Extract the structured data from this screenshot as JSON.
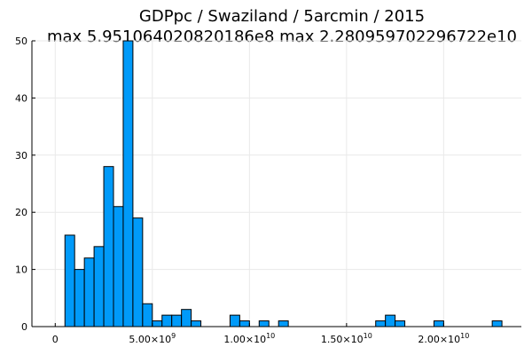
{
  "chart_data": {
    "type": "bar",
    "title": "GDPpc / Swaziland / 5arcmin / 2015",
    "subtitle": "max 5.951064020820186e8  max 2.280959702296722e10",
    "xlabel": "",
    "ylabel": "",
    "xlim": [
      -1200000000.0,
      24000000000.0
    ],
    "ylim": [
      0,
      50
    ],
    "grid": true,
    "legend": "none",
    "bar_color": "#009af9",
    "x_ticks": [
      {
        "value": 0,
        "mantissa": "0",
        "exponent": ""
      },
      {
        "value": 5000000000.0,
        "mantissa": "5.00×10",
        "exponent": "9"
      },
      {
        "value": 10000000000.0,
        "mantissa": "1.00×10",
        "exponent": "10"
      },
      {
        "value": 15000000000.0,
        "mantissa": "1.50×10",
        "exponent": "10"
      },
      {
        "value": 20000000000.0,
        "mantissa": "2.00×10",
        "exponent": "10"
      }
    ],
    "y_ticks": [
      0,
      10,
      20,
      30,
      40,
      50
    ],
    "bin_width": 500000000.0,
    "bins": [
      {
        "start": 500000000.0,
        "count": 16
      },
      {
        "start": 1000000000.0,
        "count": 10
      },
      {
        "start": 1500000000.0,
        "count": 12
      },
      {
        "start": 2000000000.0,
        "count": 14
      },
      {
        "start": 2500000000.0,
        "count": 28
      },
      {
        "start": 3000000000.0,
        "count": 21
      },
      {
        "start": 3500000000.0,
        "count": 50
      },
      {
        "start": 4000000000.0,
        "count": 19
      },
      {
        "start": 4500000000.0,
        "count": 4
      },
      {
        "start": 5000000000.0,
        "count": 1
      },
      {
        "start": 5500000000.0,
        "count": 2
      },
      {
        "start": 6000000000.0,
        "count": 2
      },
      {
        "start": 6500000000.0,
        "count": 3
      },
      {
        "start": 7000000000.0,
        "count": 1
      },
      {
        "start": 9000000000.0,
        "count": 2
      },
      {
        "start": 9500000000.0,
        "count": 1
      },
      {
        "start": 10500000000.0,
        "count": 1
      },
      {
        "start": 11500000000.0,
        "count": 1
      },
      {
        "start": 16500000000.0,
        "count": 1
      },
      {
        "start": 17000000000.0,
        "count": 2
      },
      {
        "start": 17500000000.0,
        "count": 1
      },
      {
        "start": 19500000000.0,
        "count": 1
      },
      {
        "start": 22500000000.0,
        "count": 1
      }
    ]
  }
}
